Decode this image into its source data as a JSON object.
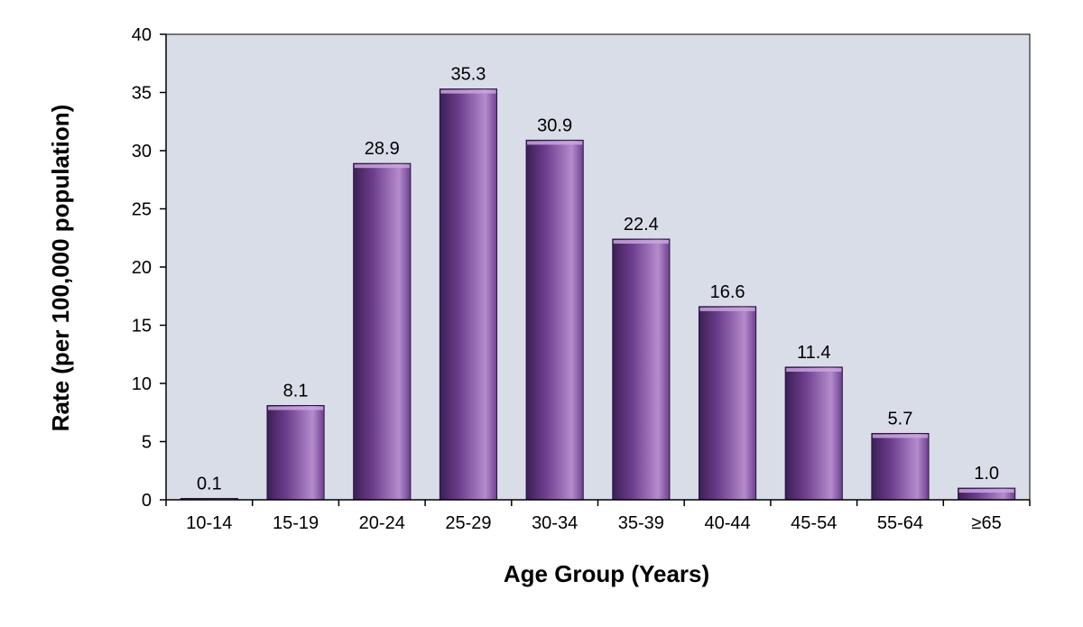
{
  "chart_data": {
    "type": "bar",
    "title": "",
    "xlabel": "Age Group (Years)",
    "ylabel": "Rate (per 100,000 population)",
    "categories": [
      "10-14",
      "15-19",
      "20-24",
      "25-29",
      "30-34",
      "35-39",
      "40-44",
      "45-54",
      "55-64",
      "≥65"
    ],
    "values": [
      0.1,
      8.1,
      28.9,
      35.3,
      30.9,
      22.4,
      16.6,
      11.4,
      5.7,
      1.0
    ],
    "value_labels": [
      "0.1",
      "8.1",
      "28.9",
      "35.3",
      "30.9",
      "22.4",
      "16.6",
      "11.4",
      "5.7",
      "1.0"
    ],
    "ylim": [
      0,
      40
    ],
    "yticks": [
      "0",
      "5",
      "10",
      "15",
      "20",
      "25",
      "30",
      "35",
      "40"
    ],
    "grid": false,
    "legend": "none",
    "colors": {
      "plot_background": "#d9dde8",
      "bar_dark": "#3c1f55",
      "bar_mid": "#6e3f8f",
      "bar_light": "#b48ccc",
      "bar_top": "#c9a6dd"
    }
  }
}
